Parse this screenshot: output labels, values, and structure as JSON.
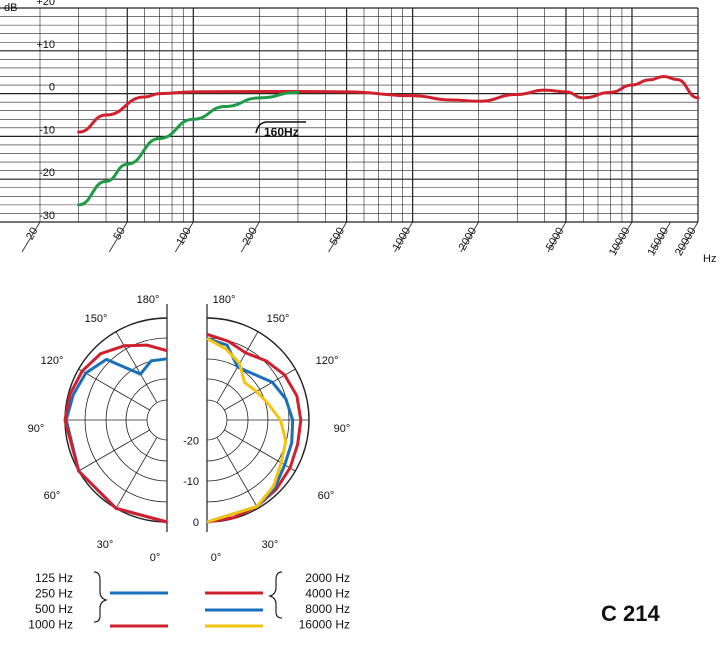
{
  "chart_data": [
    {
      "type": "line",
      "y_unit": "dB",
      "x_unit": "Hz",
      "x_scale": "log",
      "xlim": [
        20,
        20000
      ],
      "ylim": [
        -30,
        20
      ],
      "y_ticks": [
        "+20",
        "+10",
        "0",
        "-10",
        "-20",
        "-30"
      ],
      "x_ticks": [
        "20",
        "50",
        "100",
        "200",
        "500",
        "1000",
        "2000",
        "5000",
        "10000",
        "15000",
        "20000"
      ],
      "x_tick_values": [
        20,
        50,
        100,
        200,
        500,
        1000,
        2000,
        5000,
        10000,
        15000,
        20000
      ],
      "grid": true,
      "annotation": "160Hz",
      "series": [
        {
          "color": "#d0202e",
          "x": [
            30,
            40,
            60,
            70,
            100,
            200,
            300,
            500,
            1000,
            1500,
            2000,
            3000,
            4000,
            5000,
            6000,
            8000,
            10000,
            12000,
            14000,
            16000,
            20000
          ],
          "y": [
            -9,
            -5,
            -0.8,
            0,
            0.4,
            0.5,
            0.5,
            0.4,
            -0.5,
            -1.5,
            -1.8,
            -0.2,
            0.8,
            0.4,
            -1,
            0.3,
            2,
            3.2,
            4,
            3.3,
            -1
          ]
        },
        {
          "color": "#1f9a45",
          "x": [
            30,
            40,
            50,
            70,
            100,
            140,
            200,
            300
          ],
          "y": [
            -26,
            -20.5,
            -16.5,
            -10.5,
            -6,
            -3,
            -1,
            0.3
          ]
        }
      ]
    },
    {
      "type": "polar",
      "angle_labels": [
        "180°",
        "150°",
        "120°",
        "90°",
        "60°",
        "30°",
        "0°",
        "180°",
        "150°",
        "120°",
        "90°",
        "60°",
        "30°",
        "0°"
      ],
      "radial_labels": [
        "-20",
        "-10",
        "0"
      ],
      "rlim": [
        -25,
        0
      ],
      "legend": {
        "left": [
          "125 Hz",
          "250 Hz",
          "500 Hz",
          "1000 Hz"
        ],
        "right": [
          "2000 Hz",
          "4000 Hz",
          "8000 Hz",
          "16000 Hz"
        ]
      },
      "left_series": [
        {
          "color": "#1a6fbd",
          "angles": [
            0,
            30,
            60,
            90,
            105,
            120,
            135,
            150,
            165,
            180
          ],
          "values": [
            0,
            0,
            0,
            -0.3,
            -1.2,
            -2,
            -4,
            -12,
            -10,
            -10
          ]
        },
        {
          "color": "#d0202e",
          "angles": [
            0,
            30,
            60,
            90,
            105,
            120,
            135,
            150,
            165,
            180
          ],
          "values": [
            0,
            0,
            0,
            0,
            -0.4,
            -1,
            -2,
            -4,
            -6,
            -8
          ]
        }
      ],
      "right_series": [
        {
          "color": "#d0202e",
          "angles": [
            0,
            15,
            30,
            45,
            60,
            75,
            90,
            105,
            120,
            135,
            150,
            165,
            180
          ],
          "values": [
            0,
            -0.2,
            -0.5,
            -1,
            -1.5,
            -2,
            -2,
            -2.2,
            -3,
            -4.5,
            -6,
            -5,
            -4
          ]
        },
        {
          "color": "#1a6fbd",
          "angles": [
            0,
            30,
            45,
            60,
            75,
            90,
            105,
            120,
            135,
            150,
            165,
            180
          ],
          "values": [
            0,
            -0.5,
            -1.5,
            -3,
            -3.5,
            -4,
            -5,
            -6.5,
            -9,
            -10,
            -6,
            -5
          ]
        },
        {
          "color": "#f2c40f",
          "angles": [
            0,
            30,
            45,
            60,
            75,
            90,
            105,
            120,
            135,
            150,
            165,
            180
          ],
          "values": [
            0,
            -0.5,
            -2,
            -4,
            -5,
            -7,
            -9.5,
            -11,
            -12,
            -9,
            -7,
            -5
          ]
        }
      ]
    }
  ],
  "model": "C 214"
}
